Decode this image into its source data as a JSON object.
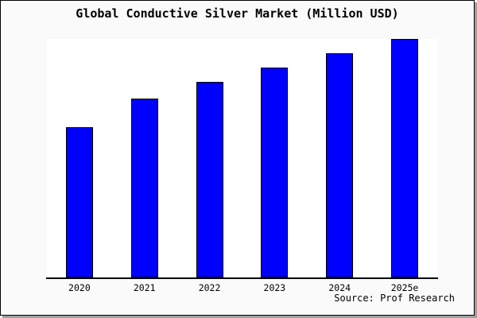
{
  "title": "Global Conductive Silver Market (Million USD)",
  "source_note": "Source: Prof Research",
  "colors": {
    "bar_fill": "#0000ff",
    "bar_border": "#000000",
    "canvas_background": "#fafafa",
    "plot_background": "#ffffff",
    "axis": "#000000",
    "frame_border": "#000000",
    "frame_shadow": "#a0a0a0",
    "text": "#000000"
  },
  "chart_data": {
    "type": "bar",
    "title": "Global Conductive Silver Market (Million USD)",
    "categories": [
      "2020",
      "2021",
      "2022",
      "2023",
      "2024",
      "2025e"
    ],
    "values": [
      63,
      75,
      82,
      88,
      94,
      100
    ],
    "xlabel": "",
    "ylabel": "",
    "ylim": [
      0,
      100
    ],
    "y_axis_ticks_visible": false,
    "grid": false,
    "legend": false,
    "annotations": [
      "Source: Prof Research"
    ]
  }
}
